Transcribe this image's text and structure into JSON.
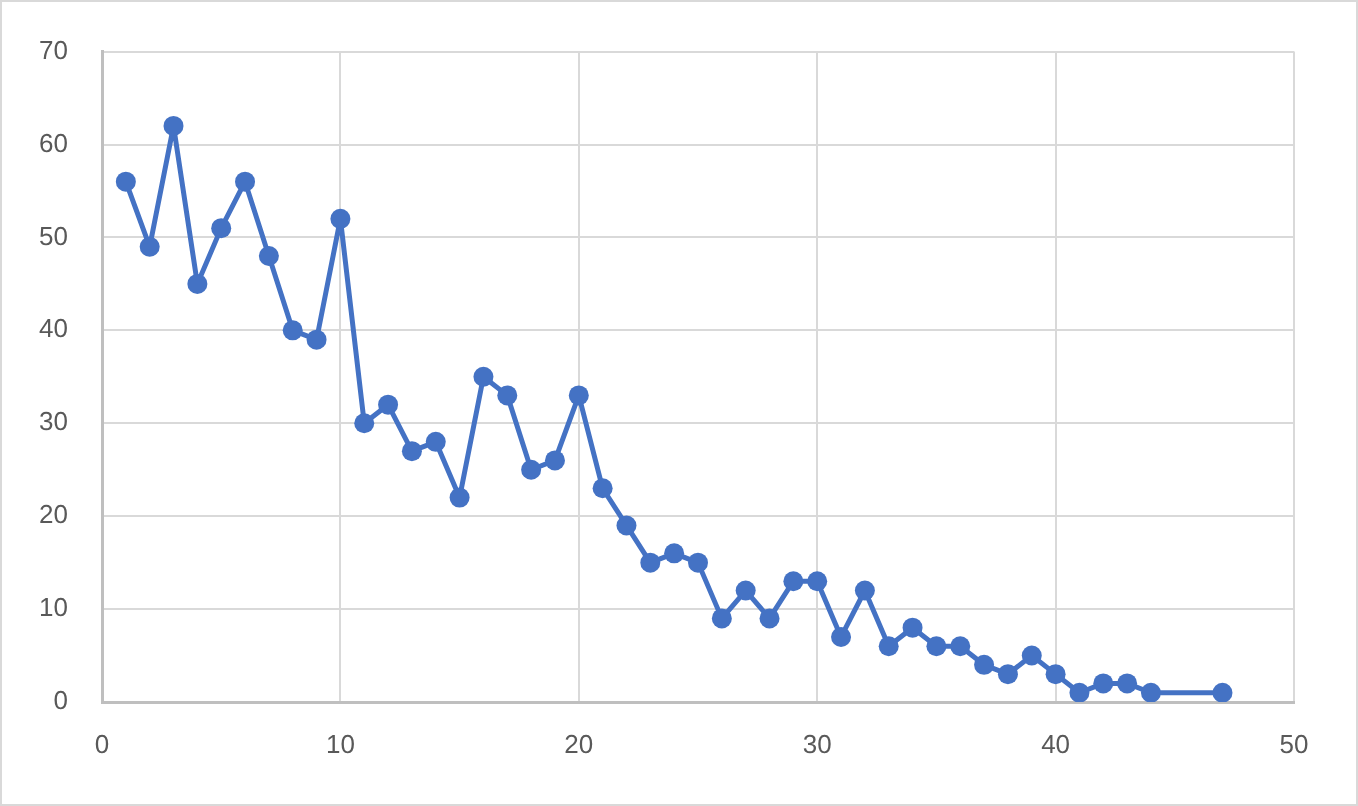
{
  "chart_data": {
    "type": "line",
    "x": [
      1,
      2,
      3,
      4,
      5,
      6,
      7,
      8,
      9,
      10,
      11,
      12,
      13,
      14,
      15,
      16,
      17,
      18,
      19,
      20,
      21,
      22,
      23,
      24,
      25,
      26,
      27,
      28,
      29,
      30,
      31,
      32,
      33,
      34,
      35,
      36,
      37,
      38,
      39,
      40,
      41,
      42,
      43,
      44,
      47
    ],
    "series": [
      {
        "color": "#4472c4",
        "values": [
          56,
          49,
          62,
          45,
          51,
          56,
          48,
          40,
          39,
          52,
          30,
          32,
          27,
          28,
          22,
          35,
          33,
          25,
          26,
          33,
          23,
          19,
          15,
          16,
          15,
          9,
          12,
          9,
          13,
          13,
          7,
          12,
          6,
          8,
          6,
          6,
          4,
          3,
          5,
          3,
          1,
          2,
          2,
          1,
          1
        ]
      }
    ],
    "xlim": [
      0,
      50
    ],
    "xticks": [
      0,
      10,
      20,
      30,
      40,
      50
    ],
    "ylim": [
      0,
      70
    ],
    "yticks": [
      0,
      10,
      20,
      30,
      40,
      50,
      60,
      70
    ],
    "grid": true,
    "marker": "circle",
    "line_style": "solid"
  }
}
